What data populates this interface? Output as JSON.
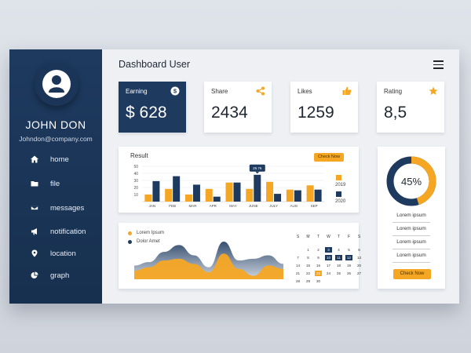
{
  "header": {
    "title": "Dashboard User"
  },
  "user": {
    "name": "JOHN DON",
    "email": "Johndon@company.com"
  },
  "sidebar": {
    "items": [
      {
        "label": "home",
        "icon": "home-icon"
      },
      {
        "label": "file",
        "icon": "folder-icon"
      },
      {
        "label": "messages",
        "icon": "envelope-icon"
      },
      {
        "label": "notification",
        "icon": "megaphone-icon"
      },
      {
        "label": "location",
        "icon": "map-pin-icon"
      },
      {
        "label": "graph",
        "icon": "pie-chart-icon"
      }
    ]
  },
  "stats": {
    "earning": {
      "label": "Earning",
      "value": "$ 628",
      "icon": "dollar-icon"
    },
    "share": {
      "label": "Share",
      "value": "2434",
      "icon": "share-icon"
    },
    "likes": {
      "label": "Likes",
      "value": "1259",
      "icon": "thumbs-up-icon"
    },
    "rating": {
      "label": "Rating",
      "value": "8,5",
      "icon": "star-icon"
    }
  },
  "result": {
    "title": "Result",
    "button": "Check Now",
    "tooltip": "26.76",
    "legend": [
      "2019",
      "2020"
    ]
  },
  "chart_data": [
    {
      "type": "bar",
      "title": "Result",
      "categories": [
        "JAN",
        "FEB",
        "MAR",
        "APR",
        "MAY",
        "JUNE",
        "JULY",
        "AUG",
        "SEP"
      ],
      "yticks": [
        10,
        20,
        30,
        40,
        50
      ],
      "ylim": [
        0,
        50
      ],
      "series": [
        {
          "name": "2019",
          "values": [
            10,
            18,
            10,
            18,
            27,
            18,
            28,
            17,
            23
          ]
        },
        {
          "name": "2020",
          "values": [
            29,
            36,
            24,
            7,
            27,
            38,
            11,
            16,
            17
          ]
        }
      ]
    },
    {
      "type": "area",
      "series": [
        {
          "name": "Lorem Ipsum",
          "values": [
            5,
            7,
            11,
            12,
            9,
            4,
            15,
            6,
            2,
            8,
            6
          ]
        },
        {
          "name": "Dolor Amet",
          "values": [
            8,
            10,
            16,
            20,
            14,
            7,
            22,
            11,
            12,
            14,
            9
          ]
        }
      ]
    },
    {
      "type": "pie",
      "values": [
        45,
        55
      ],
      "center_label": "45%"
    }
  ],
  "calendar": {
    "days": [
      "S",
      "M",
      "T",
      "W",
      "T",
      "F",
      "S"
    ],
    "weeks": [
      [
        "",
        "1",
        "2",
        "3",
        "4",
        "5",
        "6"
      ],
      [
        "7",
        "8",
        "9",
        "10",
        "11",
        "12",
        "13"
      ],
      [
        "14",
        "15",
        "16",
        "17",
        "18",
        "19",
        "20"
      ],
      [
        "21",
        "22",
        "23",
        "24",
        "25",
        "26",
        "27"
      ],
      [
        "28",
        "29",
        "30",
        "",
        "",
        "",
        ""
      ]
    ]
  },
  "donut": {
    "lines": [
      "Lorem ipsum",
      "Lorem ipsum",
      "Lorem ipsum",
      "Lorem ipsum"
    ],
    "button": "Check Now"
  },
  "colors": {
    "navy": "#1e3a5f",
    "orange": "#f5a623",
    "slate": "#6f829a"
  }
}
